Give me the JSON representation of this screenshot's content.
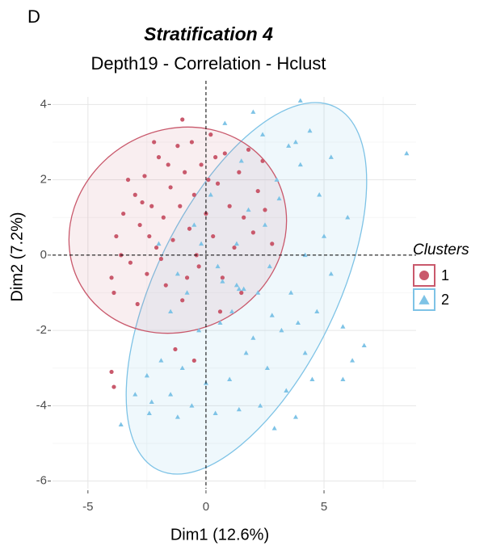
{
  "chart_data": {
    "type": "scatter",
    "panel_label": "D",
    "title": "Stratification 4",
    "subtitle": "Depth19 - Correlation - Hclust",
    "x_label": "Dim1 (12.6%)",
    "y_label": "Dim2 (7.2%)",
    "legend_title": "Clusters",
    "xlim": [
      -6.5,
      8.9
    ],
    "ylim": [
      -6.2,
      4.2
    ],
    "xticks": [
      -5,
      0,
      5
    ],
    "yticks": [
      4,
      2,
      0,
      -2,
      -4,
      -6
    ],
    "grid": true,
    "series": [
      {
        "name": "1",
        "color": "#c9596c",
        "marker": "circle",
        "x": [
          -3.8,
          -3.5,
          -3.2,
          -3,
          -2.8,
          -2.6,
          -2.5,
          -2.3,
          -2.1,
          -2,
          -1.8,
          -1.7,
          -1.5,
          -1.4,
          -1.2,
          -1.1,
          -1,
          -0.9,
          -0.7,
          -0.6,
          -0.5,
          -0.3,
          -0.2,
          0,
          0.2,
          0.3,
          0.5,
          0.7,
          0.8,
          1,
          1.2,
          1.4,
          1.6,
          1.8,
          2,
          2.2,
          2.5,
          2.8,
          -4,
          -3.9,
          -3.6,
          -3.3,
          -2.9,
          -2.4,
          -1.9,
          -1.6,
          -0.8,
          -0.4,
          0.1,
          0.6,
          -1.3,
          -0.5,
          -3.9,
          -4,
          1.5,
          -2.2,
          -1,
          0.4,
          2.4,
          -2.7
        ],
        "values": [
          0.5,
          1.1,
          -0.2,
          1.6,
          0.8,
          2.1,
          -0.5,
          1.3,
          0.2,
          2.6,
          1,
          -0.8,
          1.8,
          0.4,
          2.9,
          1.3,
          -1.2,
          2.2,
          0.7,
          3,
          1.6,
          -0.3,
          2.4,
          1.1,
          3.2,
          0.5,
          1.9,
          -0.6,
          2.7,
          1.3,
          0.2,
          2.2,
          1,
          2.8,
          0.6,
          1.7,
          1.2,
          0.3,
          -0.6,
          -1,
          0,
          2,
          -1.3,
          0.5,
          -0.1,
          2.4,
          -0.6,
          0,
          2,
          -1.5,
          -2.5,
          -2.8,
          -3.5,
          -3.1,
          -1,
          3,
          3.6,
          2.6,
          2.5,
          1.4
        ]
      },
      {
        "name": "2",
        "color": "#7ec3e6",
        "marker": "triangle",
        "x": [
          8.5,
          4.4,
          5.3,
          4,
          3.5,
          6,
          5,
          4.2,
          3.1,
          2,
          1.5,
          0.8,
          2.7,
          3.6,
          4.7,
          5.8,
          6.7,
          4.2,
          3.2,
          2.2,
          1.3,
          0.5,
          -0.5,
          -1.2,
          -2,
          -1.5,
          -0.3,
          0.6,
          1.7,
          2.6,
          3.4,
          4.5,
          1,
          0,
          -1,
          -1.9,
          -2.5,
          -2.3,
          -1.5,
          -0.6,
          0.4,
          1.4,
          2.3,
          -2.4,
          -1.2,
          -3,
          -3.6,
          5.8,
          6.2,
          2.9,
          3.8,
          0.7,
          2.5,
          3,
          1.8,
          0.2,
          -0.8,
          1.1,
          2,
          3.9,
          5.3,
          4.8,
          2.4,
          3.8,
          -0.2,
          1.3,
          2.8,
          1.4,
          1.6,
          4
        ],
        "values": [
          2.7,
          3.3,
          2.6,
          2.4,
          2.9,
          1,
          0.5,
          0,
          1.5,
          3.8,
          2.5,
          3.5,
          -0.3,
          -1,
          -1.5,
          -1.9,
          -2.4,
          -2.6,
          -2,
          -1,
          -0.8,
          -0.3,
          0.8,
          -0.5,
          0.3,
          -1.5,
          -2,
          -1.8,
          -2.6,
          -3,
          -3.6,
          -3.3,
          -3.3,
          -3.4,
          -3,
          -2.8,
          -3.2,
          -3.9,
          -3.7,
          -4,
          -4.2,
          -4.1,
          -4,
          -4.2,
          -4.3,
          -3.7,
          -4.5,
          -3.3,
          -2.8,
          -4.6,
          -4.3,
          -0.7,
          0.8,
          2,
          1.2,
          1.6,
          -1,
          -1.5,
          -2.2,
          -1.8,
          -0.5,
          1.6,
          3.2,
          3,
          0.3,
          0.3,
          -1.6,
          -0.9,
          -0.9,
          4.1
        ]
      }
    ]
  }
}
